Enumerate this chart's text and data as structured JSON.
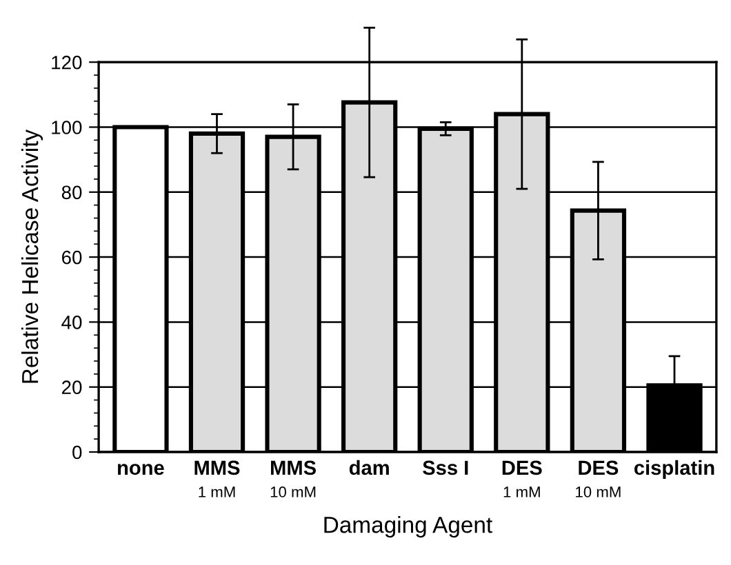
{
  "chart_data": {
    "type": "bar",
    "xlabel": "Damaging Agent",
    "ylabel": "Relative Helicase Activity",
    "categories": [
      "none",
      "MMS\n1 mM",
      "MMS\n10 mM",
      "dam",
      "Sss I",
      "DES\n1 mM",
      "DES\n10 mM",
      "cisplatin"
    ],
    "values": [
      100,
      98,
      97,
      107.6,
      99.5,
      104,
      74.3,
      20.5
    ],
    "errors": [
      null,
      6,
      10,
      23,
      2,
      23,
      15,
      9
    ],
    "colors": [
      "#ffffff",
      "#dcdcdc",
      "#dcdcdc",
      "#dcdcdc",
      "#dcdcdc",
      "#dcdcdc",
      "#dcdcdc",
      "#000000"
    ],
    "ylim": [
      0,
      120
    ],
    "yticks": [
      0,
      20,
      40,
      60,
      80,
      100,
      120
    ],
    "grid": "y"
  }
}
